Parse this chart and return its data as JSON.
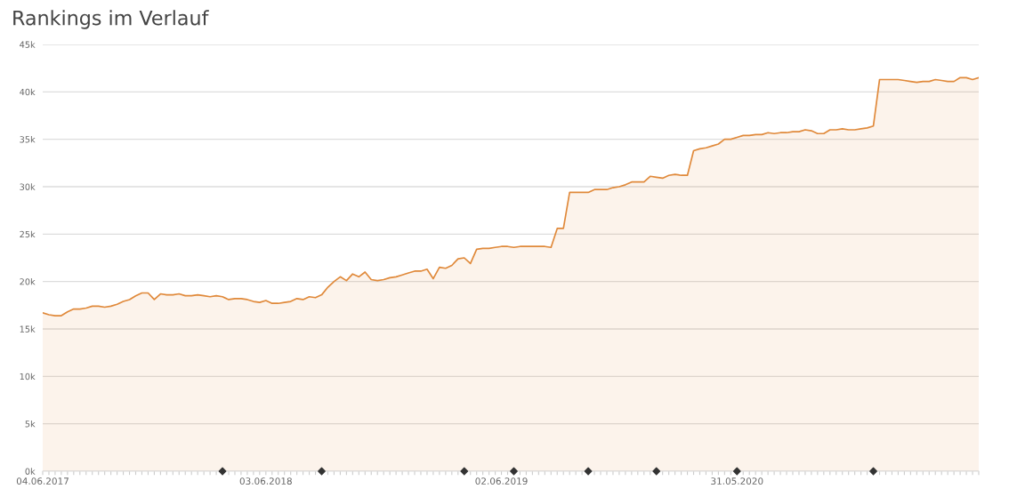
{
  "chart_data": {
    "type": "area",
    "title": "Rankings im Verlauf",
    "categories": [
      "04.06.2017",
      null,
      null,
      null,
      null,
      null,
      null,
      null,
      null,
      null,
      null,
      null,
      null,
      null,
      null,
      null,
      null,
      null,
      null,
      null,
      null,
      null,
      null,
      null,
      null,
      null,
      null,
      null,
      null,
      null,
      null,
      null,
      null,
      null,
      null,
      null,
      "03.06.2018",
      null,
      null,
      null,
      null,
      null,
      null,
      null,
      null,
      null,
      null,
      null,
      null,
      null,
      null,
      null,
      null,
      null,
      null,
      null,
      null,
      null,
      null,
      null,
      null,
      null,
      null,
      null,
      null,
      null,
      null,
      null,
      null,
      null,
      null,
      null,
      null,
      null,
      "02.06.2019",
      null,
      null,
      null,
      null,
      null,
      null,
      null,
      null,
      null,
      null,
      null,
      null,
      null,
      null,
      null,
      null,
      null,
      null,
      null,
      null,
      null,
      null,
      null,
      null,
      null,
      null,
      null,
      null,
      null,
      null,
      null,
      null,
      null,
      null,
      null,
      null,
      null,
      "31.05.2020",
      null,
      null,
      null,
      null,
      null,
      null,
      null,
      null,
      null,
      null,
      null,
      null,
      null,
      null,
      null,
      null,
      null,
      null,
      null,
      null,
      null,
      null,
      null,
      null,
      null,
      null,
      null,
      null,
      null,
      null,
      null,
      null,
      null,
      null,
      null,
      null,
      null,
      null,
      null
    ],
    "series": [
      {
        "color": "#e0893a",
        "values": [
          16700,
          16500,
          16400,
          16400,
          16800,
          17100,
          17100,
          17200,
          17400,
          17400,
          17300,
          17400,
          17600,
          17900,
          18100,
          18500,
          18800,
          18800,
          18100,
          18700,
          18600,
          18600,
          18700,
          18500,
          18500,
          18600,
          18500,
          18400,
          18500,
          18400,
          18100,
          18200,
          18200,
          18100,
          17900,
          17800,
          18000,
          17700,
          17700,
          17800,
          17900,
          18200,
          18100,
          18400,
          18300,
          18600,
          19400,
          20000,
          20500,
          20100,
          20800,
          20500,
          21000,
          20200,
          20100,
          20200,
          20400,
          20500,
          20700,
          20900,
          21100,
          21100,
          21300,
          20300,
          21500,
          21400,
          21700,
          22400,
          22500,
          21900,
          23400,
          23500,
          23500,
          23600,
          23700,
          23700,
          23600,
          23700,
          23700,
          23700,
          23700,
          23700,
          23600,
          25600,
          25600,
          29400,
          29400,
          29400,
          29400,
          29700,
          29700,
          29700,
          29900,
          30000,
          30200,
          30500,
          30500,
          30500,
          31100,
          31000,
          30900,
          31200,
          31300,
          31200,
          31200,
          33800,
          34000,
          34100,
          34300,
          34500,
          35000,
          35000,
          35200,
          35400,
          35400,
          35500,
          35500,
          35700,
          35600,
          35700,
          35700,
          35800,
          35800,
          36000,
          35900,
          35600,
          35600,
          36000,
          36000,
          36100,
          36000,
          36000,
          36100,
          36200,
          36400,
          41300,
          41300,
          41300,
          41300,
          41200,
          41100,
          41000,
          41100,
          41100,
          41300,
          41200,
          41100,
          41100,
          41500,
          41500,
          41300,
          41500
        ]
      },
      {
        "type": "scatter",
        "color": "#333333",
        "marker": "diamond",
        "values": [
          null,
          null,
          null,
          null,
          null,
          null,
          null,
          null,
          null,
          null,
          null,
          null,
          null,
          null,
          null,
          null,
          null,
          null,
          null,
          null,
          null,
          null,
          null,
          null,
          null,
          null,
          null,
          null,
          null,
          0,
          null,
          null,
          null,
          null,
          null,
          null,
          null,
          null,
          null,
          null,
          null,
          null,
          null,
          null,
          null,
          0,
          null,
          null,
          null,
          null,
          null,
          null,
          null,
          null,
          null,
          null,
          null,
          null,
          null,
          null,
          null,
          null,
          null,
          null,
          null,
          null,
          null,
          null,
          0,
          null,
          null,
          null,
          null,
          null,
          null,
          null,
          0,
          null,
          null,
          null,
          null,
          null,
          null,
          null,
          null,
          null,
          null,
          null,
          0,
          null,
          null,
          null,
          null,
          null,
          null,
          null,
          null,
          null,
          null,
          0,
          null,
          null,
          null,
          null,
          null,
          null,
          null,
          null,
          null,
          null,
          null,
          null,
          0,
          null,
          null,
          null,
          null,
          null,
          null,
          null,
          null,
          null,
          null,
          null,
          null,
          null,
          null,
          null,
          null,
          null,
          null,
          null,
          null,
          null,
          0,
          null,
          null,
          null,
          null,
          null,
          null,
          null,
          null,
          null,
          null,
          null,
          null,
          null,
          null,
          null,
          null,
          null
        ]
      }
    ],
    "ylim": [
      0,
      45000
    ],
    "yticks": [
      {
        "value": 0,
        "label": "0k"
      },
      {
        "value": 5000,
        "label": "5k"
      },
      {
        "value": 10000,
        "label": "10k"
      },
      {
        "value": 15000,
        "label": "15k"
      },
      {
        "value": 20000,
        "label": "20k"
      },
      {
        "value": 25000,
        "label": "25k"
      },
      {
        "value": 30000,
        "label": "30k"
      },
      {
        "value": 35000,
        "label": "35k"
      },
      {
        "value": 40000,
        "label": "40k"
      },
      {
        "value": 45000,
        "label": "45k"
      }
    ],
    "grid": "y"
  }
}
